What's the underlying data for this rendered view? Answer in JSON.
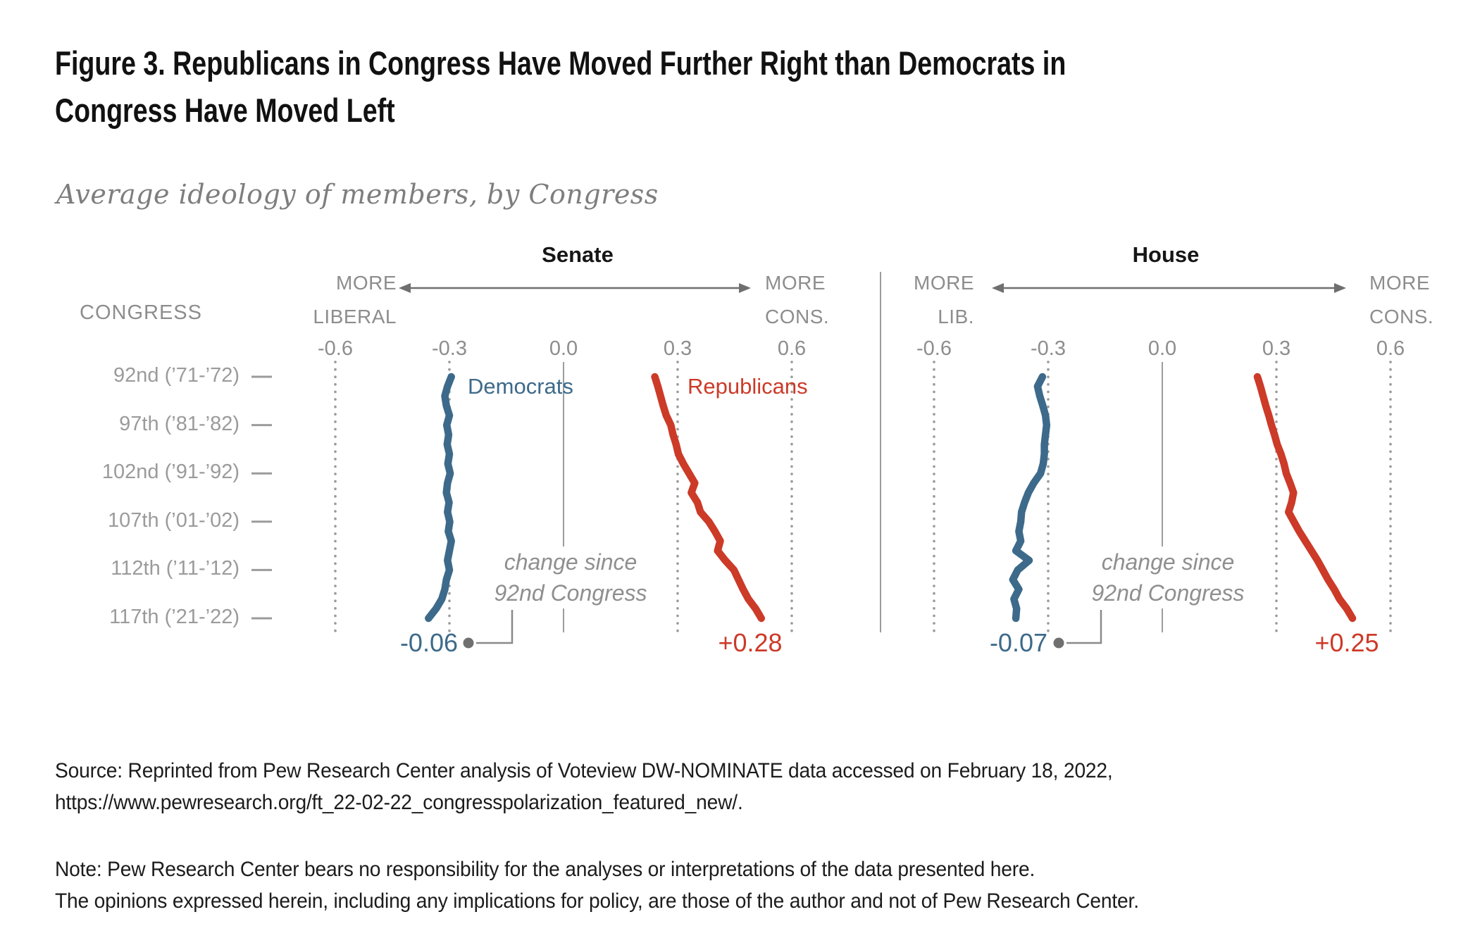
{
  "title": {
    "line1": "Figure 3. Republicans in Congress Have Moved Further Right than Democrats in",
    "line2": "Congress Have Moved Left"
  },
  "subtitle": "Average ideology of members, by Congress",
  "congress_axis_header": "CONGRESS",
  "chart_data": {
    "type": "line",
    "orientation": "vertical-time-axis",
    "x_axis": {
      "ticks": [
        -0.6,
        -0.3,
        0.0,
        0.3,
        0.6
      ],
      "tick_labels": [
        "-0.6",
        "-0.3",
        "0.0",
        "0.3",
        "0.6"
      ],
      "range": [
        -0.75,
        0.75
      ],
      "grid": "dotted vertical lines at ticks, solid line at 0.0"
    },
    "congress_start": 92,
    "congress_end": 117,
    "row_labels": [
      "92nd (’71-’72)",
      "97th (’81-’82)",
      "102nd (’91-’92)",
      "107th (’01-’02)",
      "112th (’11-’12)",
      "117th (’21-’22)"
    ],
    "panels": [
      {
        "title": "Senate",
        "left_label": [
          "MORE",
          "LIBERAL"
        ],
        "right_label": [
          "MORE",
          "CONS."
        ],
        "annotation": [
          "change since",
          "92nd Congress"
        ],
        "series": [
          {
            "name": "Democrats",
            "color": "#3d6a8a",
            "change_label": "-0.06",
            "values": [
              -0.295,
              -0.305,
              -0.312,
              -0.308,
              -0.3,
              -0.307,
              -0.302,
              -0.306,
              -0.3,
              -0.304,
              -0.298,
              -0.305,
              -0.308,
              -0.301,
              -0.305,
              -0.299,
              -0.303,
              -0.295,
              -0.3,
              -0.305,
              -0.3,
              -0.308,
              -0.312,
              -0.32,
              -0.335,
              -0.355
            ]
          },
          {
            "name": "Republicans",
            "color": "#cc3a28",
            "change_label": "+0.28",
            "values": [
              0.24,
              0.248,
              0.255,
              0.262,
              0.27,
              0.282,
              0.288,
              0.296,
              0.302,
              0.315,
              0.33,
              0.345,
              0.336,
              0.352,
              0.36,
              0.382,
              0.398,
              0.412,
              0.405,
              0.425,
              0.448,
              0.46,
              0.472,
              0.486,
              0.505,
              0.52
            ]
          }
        ]
      },
      {
        "title": "House",
        "left_label": [
          "MORE",
          "LIB."
        ],
        "right_label": [
          "MORE",
          "CONS."
        ],
        "annotation": [
          "change since",
          "92nd Congress"
        ],
        "series": [
          {
            "name": "Democrats",
            "color": "#3d6a8a",
            "change_label": "-0.07",
            "values": [
              -0.315,
              -0.328,
              -0.322,
              -0.314,
              -0.307,
              -0.304,
              -0.307,
              -0.31,
              -0.31,
              -0.313,
              -0.32,
              -0.338,
              -0.352,
              -0.362,
              -0.37,
              -0.372,
              -0.377,
              -0.372,
              -0.385,
              -0.35,
              -0.38,
              -0.393,
              -0.377,
              -0.39,
              -0.383,
              -0.385
            ]
          },
          {
            "name": "Republicans",
            "color": "#cc3a28",
            "change_label": "+0.25",
            "values": [
              0.25,
              0.258,
              0.265,
              0.272,
              0.28,
              0.287,
              0.295,
              0.302,
              0.312,
              0.32,
              0.326,
              0.336,
              0.345,
              0.34,
              0.332,
              0.346,
              0.36,
              0.376,
              0.392,
              0.408,
              0.422,
              0.436,
              0.452,
              0.466,
              0.485,
              0.5
            ]
          }
        ]
      }
    ]
  },
  "source": {
    "line1": "Source: Reprinted from Pew Research Center analysis of Voteview DW-NOMINATE data accessed on February 18, 2022,",
    "line2": "https://www.pewresearch.org/ft_22-02-22_congresspolarization_featured_new/."
  },
  "note": {
    "line1": "Note: Pew Research Center bears no responsibility for the analyses or interpretations of the data presented here.",
    "line2": "The opinions expressed herein, including any implications for policy, are those of the author and not of Pew Research Center."
  },
  "colors": {
    "democrat": "#3d6a8a",
    "republican": "#cc3a28",
    "grid_dots": "#9a9a9a",
    "zero_line": "#9c9c9c",
    "arrow": "#6f6f6f",
    "callout": "#8a8a8a",
    "gray_text": "#8d8d8d",
    "title_text": "#111111"
  }
}
